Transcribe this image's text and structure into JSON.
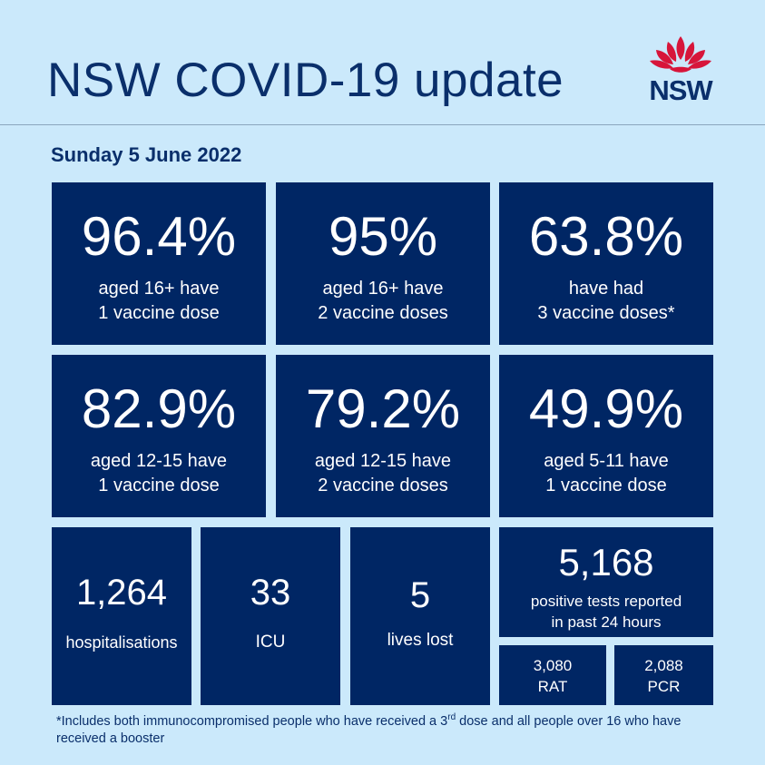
{
  "header": {
    "title": "NSW COVID-19 update",
    "logo_text": "NSW",
    "logo_icon": "waratah-flower-icon"
  },
  "date": "Sunday 5 June 2022",
  "vaccination": [
    {
      "value": "96.4%",
      "line1": "aged 16+ have",
      "line2": "1 vaccine dose"
    },
    {
      "value": "95%",
      "line1": "aged 16+ have",
      "line2": "2 vaccine doses"
    },
    {
      "value": "63.8%",
      "line1": "have had",
      "line2": "3 vaccine doses*"
    },
    {
      "value": "82.9%",
      "line1": "aged 12-15 have",
      "line2": "1 vaccine dose"
    },
    {
      "value": "79.2%",
      "line1": "aged 12-15 have",
      "line2": "2 vaccine doses"
    },
    {
      "value": "49.9%",
      "line1": "aged 5-11 have",
      "line2": "1 vaccine dose"
    }
  ],
  "stats": {
    "hospitalisations": {
      "value": "1,264",
      "label": "hospitalisations"
    },
    "icu": {
      "value": "33",
      "label": "ICU"
    },
    "lives_lost": {
      "value": "5",
      "label": "lives lost"
    },
    "positive": {
      "value": "5,168",
      "line1": "positive tests reported",
      "line2": "in past 24 hours"
    },
    "rat": {
      "value": "3,080",
      "label": "RAT"
    },
    "pcr": {
      "value": "2,088",
      "label": "PCR"
    }
  },
  "footnote": {
    "part1": "*Includes both immunocompromised people who have received a 3",
    "sup": "rd",
    "part2": " dose and all people over 16 who have received a booster"
  },
  "colors": {
    "background": "#cbe9fb",
    "tile": "#002664",
    "text_dark": "#0a2f6b",
    "waratah_red": "#d7153a"
  }
}
